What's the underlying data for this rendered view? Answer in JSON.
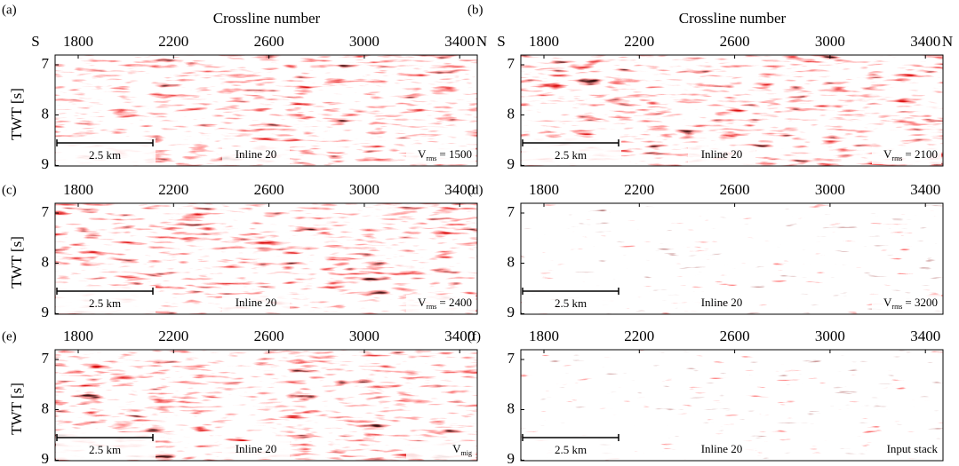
{
  "panels": [
    {
      "letter": "(a)",
      "title": "Crossline number",
      "left_label": "S",
      "right_label": "N",
      "xticks": [
        1800,
        2200,
        2600,
        3000,
        3400
      ],
      "yticks": [
        7,
        8,
        9
      ],
      "y_label": "TWT [s]",
      "scale_bar": "2.5 km",
      "inline": "Inline 20",
      "velocity": {
        "symbol": "V",
        "subscript": "rms",
        "value": "= 1500"
      }
    },
    {
      "letter": "(b)",
      "title": "Crossline number",
      "left_label": "S",
      "right_label": "N",
      "xticks": [
        1800,
        2200,
        2600,
        3000,
        3400
      ],
      "yticks": [
        7,
        8,
        9
      ],
      "scale_bar": "2.5 km",
      "inline": "Inline 20",
      "velocity": {
        "symbol": "V",
        "subscript": "rms",
        "value": "= 2100"
      }
    },
    {
      "letter": "(c)",
      "xticks": [
        1800,
        2200,
        2600,
        3000,
        3400
      ],
      "yticks": [
        7,
        8,
        9
      ],
      "y_label": "TWT [s]",
      "scale_bar": "2.5 km",
      "inline": "Inline 20",
      "velocity": {
        "symbol": "V",
        "subscript": "rms",
        "value": "= 2400"
      }
    },
    {
      "letter": "(d)",
      "xticks": [
        1800,
        2200,
        2600,
        3000,
        3400
      ],
      "yticks": [
        7,
        8,
        9
      ],
      "scale_bar": "2.5 km",
      "inline": "Inline 20",
      "velocity": {
        "symbol": "V",
        "subscript": "rms",
        "value": "= 3200"
      }
    },
    {
      "letter": "(e)",
      "xticks": [
        1800,
        2200,
        2600,
        3000,
        3400
      ],
      "yticks": [
        7,
        8,
        9
      ],
      "y_label": "TWT [s]",
      "scale_bar": "2.5 km",
      "inline": "Inline 20",
      "velocity": {
        "symbol": "V",
        "subscript": "mig"
      }
    },
    {
      "letter": "(f)",
      "xticks": [
        1800,
        2200,
        2600,
        3000,
        3400
      ],
      "yticks": [
        7,
        8,
        9
      ],
      "scale_bar": "2.5 km",
      "inline": "Inline 20",
      "note": "Input stack"
    }
  ]
}
